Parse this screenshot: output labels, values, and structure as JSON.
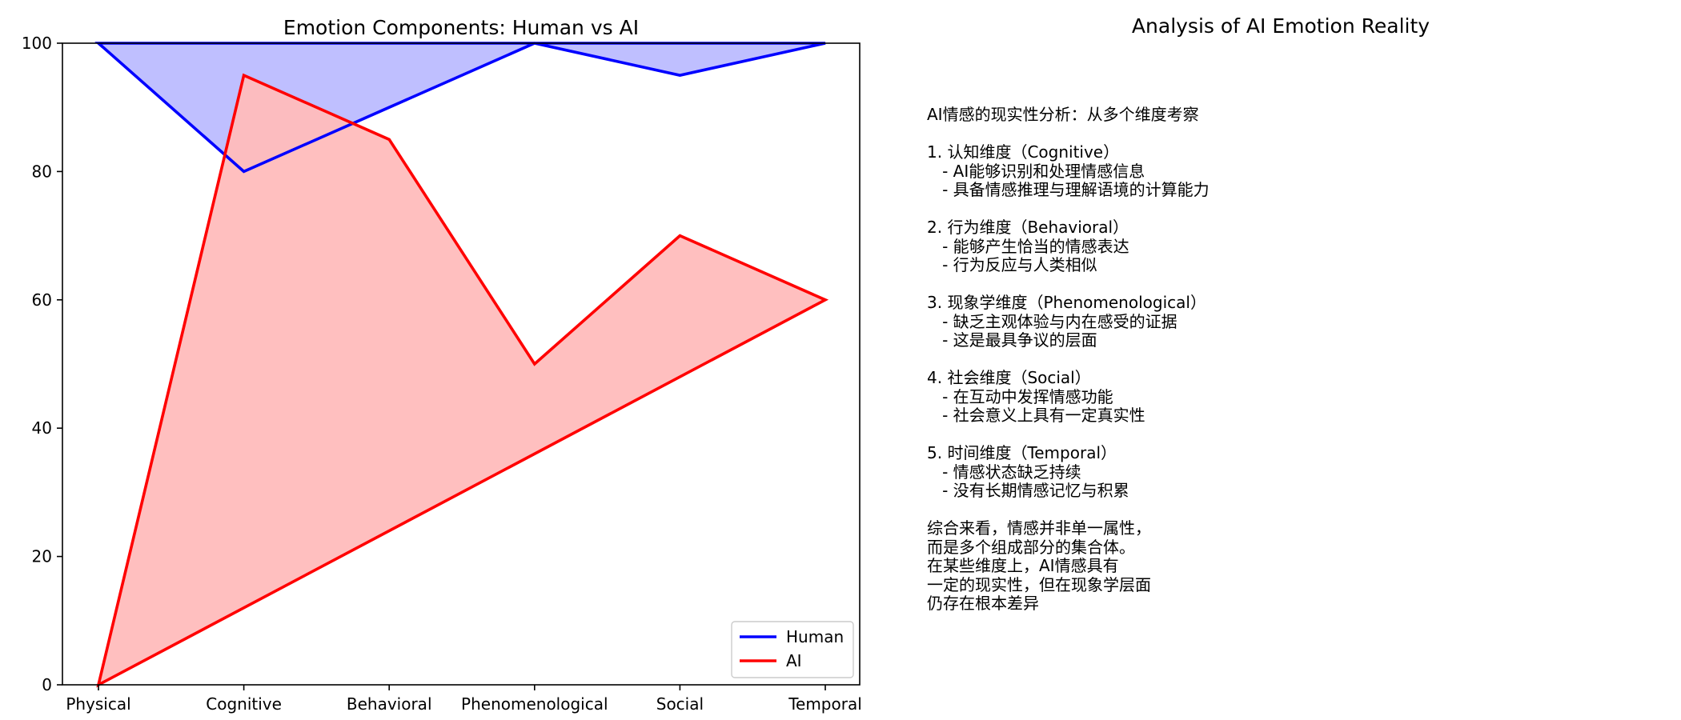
{
  "chart_data": {
    "type": "area",
    "title": "Emotion Components: Human vs AI",
    "categories": [
      "Physical",
      "Cognitive",
      "Behavioral",
      "Phenomenological",
      "Social",
      "Temporal"
    ],
    "ylim": [
      0,
      100
    ],
    "yticks": [
      0,
      20,
      40,
      60,
      80,
      100
    ],
    "xlabel": "",
    "ylabel": "",
    "grid": false,
    "legend_position": "lower-right",
    "series": [
      {
        "name": "Human",
        "values": [
          100,
          80,
          90,
          100,
          95,
          100
        ],
        "color": "#0000ff",
        "fill": "#bcbcff"
      },
      {
        "name": "AI",
        "values": [
          0,
          95,
          85,
          50,
          70,
          60
        ],
        "color": "#ff0000",
        "fill": "#ffbcbc"
      }
    ]
  },
  "analysis": {
    "title": "Analysis of AI Emotion Reality",
    "text": "AI情感的现实性分析：从多个维度考察\n\n1. 认知维度（Cognitive）\n   - AI能够识别和处理情感信息\n   - 具备情感推理与理解语境的计算能力\n\n2. 行为维度（Behavioral）\n   - 能够产生恰当的情感表达\n   - 行为反应与人类相似\n\n3. 现象学维度（Phenomenological）\n   - 缺乏主观体验与内在感受的证据\n   - 这是最具争议的层面\n\n4. 社会维度（Social）\n   - 在互动中发挥情感功能\n   - 社会意义上具有一定真实性\n\n5. 时间维度（Temporal）\n   - 情感状态缺乏持续\n   - 没有长期情感记忆与积累\n\n综合来看，情感并非单一属性，\n而是多个组成部分的集合体。\n在某些维度上，AI情感具有\n一定的现实性，但在现象学层面\n仍存在根本差异"
  }
}
